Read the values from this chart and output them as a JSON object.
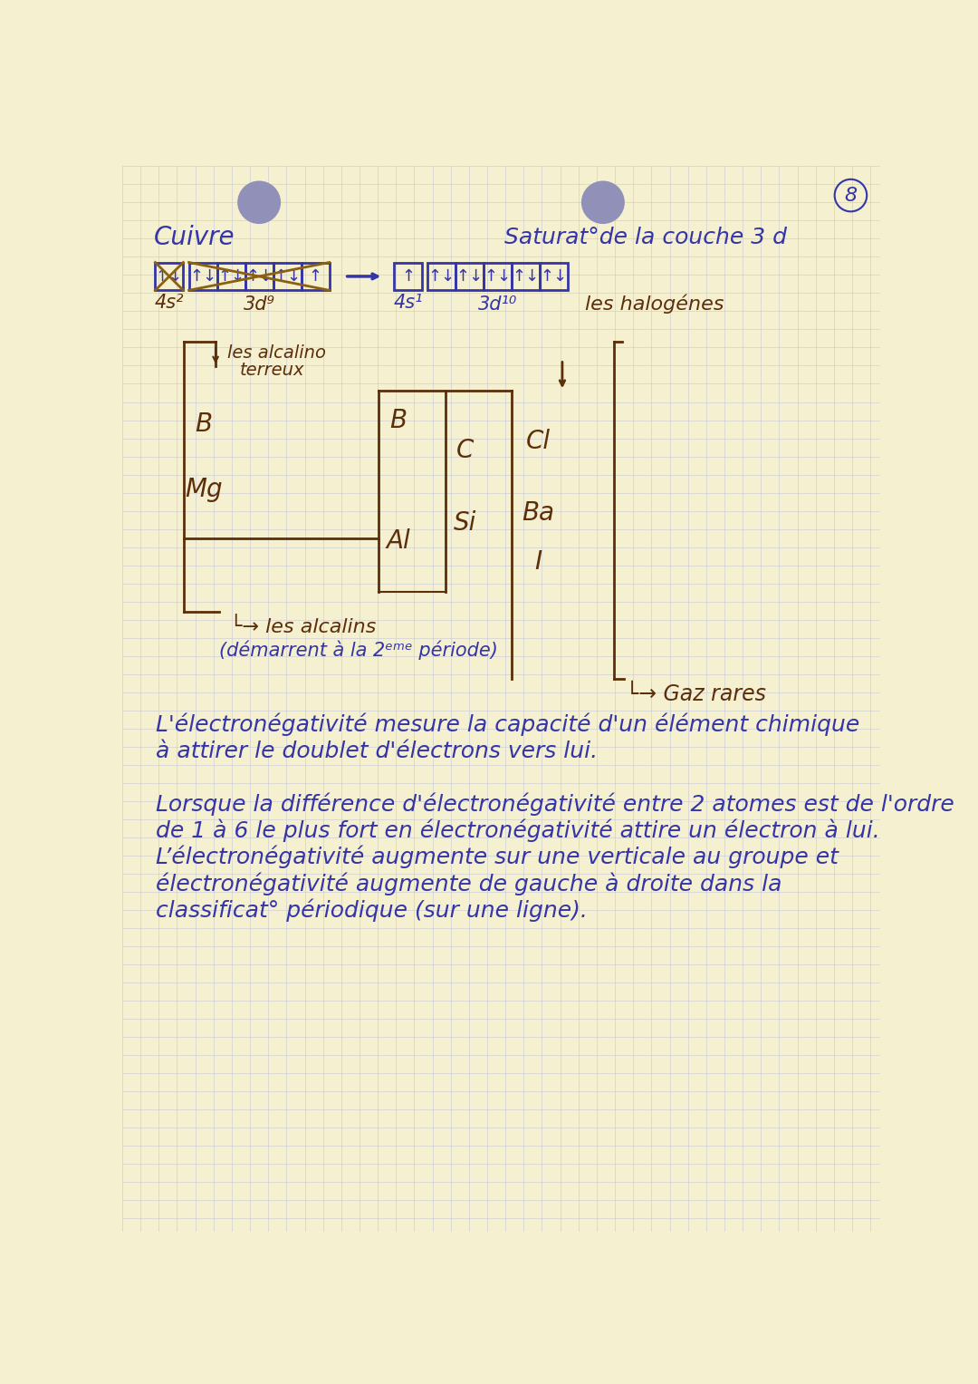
{
  "bg_color": "#f5f0d0",
  "grid_color": "#c8c8d8",
  "blue": "#3535a8",
  "brown": "#5c2e0a",
  "page_number": "8",
  "title_cuivre": "Cuivre",
  "title_saturation": "Saturat°de la couche 3 d",
  "label_halogenes": "les halogénes",
  "label_alcalino": "les alcalino",
  "label_terreux": "terreux",
  "label_alcalins1": "└→ les alcalins",
  "label_alcalins2": "(démarrent à la 2ᵉᵐᵉ période)",
  "label_gazrares": "└→ Gaz rares",
  "text_e1": "L'électronégativité mesure la capacité d'un élément chimique",
  "text_e2": "à attirer le doublet d'électrons vers lui.",
  "text_l1": "Lorsque la différence d'électronégativité entre 2 atomes est de l'ordre",
  "text_l2": "de 1 à 6 le plus fort en électronégativité attire un électron à lui.",
  "text_l3": "L’électronégativité augmente sur une verticale au groupe et",
  "text_l4": "électronégativité augmente de gauche à droite dans la",
  "text_l5": "classificat° périodique (sur une ligne)."
}
